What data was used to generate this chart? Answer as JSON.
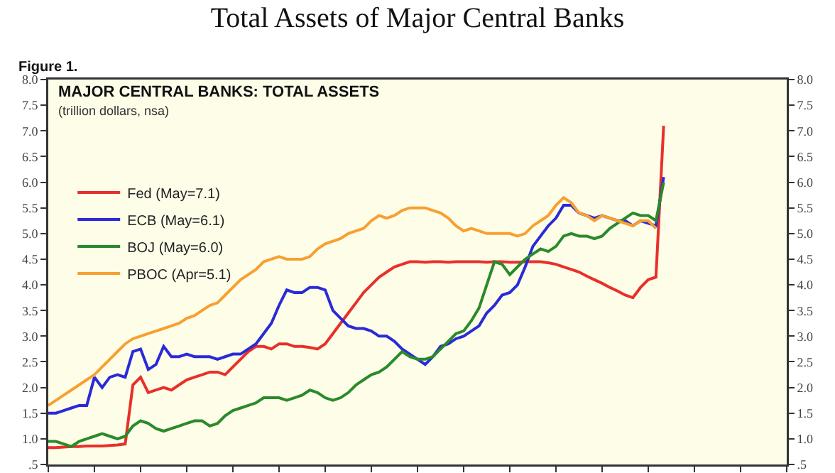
{
  "chart_data": {
    "type": "line",
    "title": "Total Assets of Major Central Banks",
    "subtitle": "MAJOR CENTRAL BANKS: TOTAL ASSETS",
    "annotations": [
      "Figure 1.",
      "(trillion dollars, nsa)"
    ],
    "categories": [
      null,
      null,
      null,
      null,
      null,
      null,
      null,
      null,
      null,
      null,
      null,
      null,
      null,
      null,
      null,
      null,
      null,
      null,
      null,
      null,
      null,
      null,
      null,
      null,
      null,
      null,
      null,
      null,
      null,
      null,
      null,
      null,
      null,
      null,
      null,
      null,
      null,
      null,
      null,
      null,
      null,
      null,
      null,
      null,
      null,
      null,
      null,
      null,
      null,
      null,
      null,
      null,
      null,
      null,
      null,
      null,
      null,
      null,
      null,
      null,
      null,
      null,
      null,
      null,
      null,
      null,
      null,
      null,
      null,
      null,
      null,
      null,
      null,
      null,
      null,
      null,
      null,
      null,
      null,
      null,
      null,
      null,
      null,
      null,
      null,
      null,
      null,
      null,
      null,
      null,
      null,
      null,
      null,
      null,
      null,
      null,
      null
    ],
    "series": [
      {
        "name": "Fed (May=7.1)",
        "color": "#e8302a",
        "values": [
          0.83,
          0.83,
          0.84,
          0.85,
          0.85,
          0.86,
          0.86,
          0.86,
          0.87,
          0.88,
          0.9,
          2.05,
          2.2,
          1.9,
          1.95,
          2.0,
          1.95,
          2.05,
          2.15,
          2.2,
          2.25,
          2.3,
          2.3,
          2.25,
          2.4,
          2.55,
          2.7,
          2.8,
          2.8,
          2.75,
          2.85,
          2.85,
          2.8,
          2.8,
          2.78,
          2.75,
          2.85,
          3.05,
          3.25,
          3.45,
          3.65,
          3.85,
          4.0,
          4.15,
          4.25,
          4.35,
          4.4,
          4.45,
          4.45,
          4.44,
          4.45,
          4.45,
          4.44,
          4.45,
          4.45,
          4.45,
          4.45,
          4.44,
          4.45,
          4.45,
          4.44,
          4.44,
          4.45,
          4.45,
          4.45,
          4.43,
          4.4,
          4.35,
          4.3,
          4.25,
          4.17,
          4.1,
          4.03,
          3.95,
          3.88,
          3.8,
          3.75,
          3.95,
          4.1,
          4.15,
          7.1,
          null,
          null,
          null,
          null,
          null,
          null,
          null,
          null,
          null,
          null,
          null,
          null,
          null,
          null,
          null,
          null
        ]
      },
      {
        "name": "ECB (May=6.1)",
        "color": "#2a2ad8",
        "values": [
          1.5,
          1.5,
          1.55,
          1.6,
          1.65,
          1.65,
          2.2,
          2.0,
          2.2,
          2.25,
          2.2,
          2.7,
          2.75,
          2.35,
          2.45,
          2.8,
          2.6,
          2.6,
          2.65,
          2.6,
          2.6,
          2.6,
          2.55,
          2.6,
          2.65,
          2.65,
          2.75,
          2.85,
          3.05,
          3.25,
          3.6,
          3.9,
          3.85,
          3.85,
          3.95,
          3.95,
          3.9,
          3.5,
          3.35,
          3.2,
          3.15,
          3.15,
          3.1,
          3.0,
          3.0,
          2.9,
          2.75,
          2.65,
          2.55,
          2.45,
          2.6,
          2.8,
          2.85,
          2.95,
          3.0,
          3.1,
          3.2,
          3.45,
          3.6,
          3.8,
          3.85,
          4.0,
          4.35,
          4.75,
          4.95,
          5.15,
          5.3,
          5.55,
          5.55,
          5.4,
          5.35,
          5.3,
          5.35,
          5.3,
          5.25,
          5.25,
          5.15,
          5.25,
          5.2,
          5.15,
          6.1,
          null,
          null,
          null,
          null,
          null,
          null,
          null,
          null,
          null,
          null,
          null,
          null,
          null,
          null,
          null,
          null
        ]
      },
      {
        "name": "BOJ (May=6.0)",
        "color": "#2a8a2a",
        "values": [
          0.95,
          0.95,
          0.9,
          0.85,
          0.95,
          1.0,
          1.05,
          1.1,
          1.05,
          1.0,
          1.05,
          1.25,
          1.35,
          1.3,
          1.2,
          1.15,
          1.2,
          1.25,
          1.3,
          1.35,
          1.35,
          1.25,
          1.3,
          1.45,
          1.55,
          1.6,
          1.65,
          1.7,
          1.8,
          1.8,
          1.8,
          1.75,
          1.8,
          1.85,
          1.95,
          1.9,
          1.8,
          1.75,
          1.8,
          1.9,
          2.05,
          2.15,
          2.25,
          2.3,
          2.4,
          2.55,
          2.7,
          2.6,
          2.55,
          2.55,
          2.6,
          2.75,
          2.9,
          3.05,
          3.1,
          3.3,
          3.55,
          4.0,
          4.45,
          4.4,
          4.2,
          4.35,
          4.5,
          4.6,
          4.7,
          4.65,
          4.75,
          4.95,
          5.0,
          4.95,
          4.95,
          4.9,
          4.95,
          5.1,
          5.2,
          5.3,
          5.4,
          5.35,
          5.35,
          5.25,
          6.0,
          null,
          null,
          null,
          null,
          null,
          null,
          null,
          null,
          null,
          null,
          null,
          null,
          null,
          null,
          null,
          null
        ]
      },
      {
        "name": "PBOC (Apr=5.1)",
        "color": "#f7a032",
        "values": [
          1.65,
          1.75,
          1.85,
          1.95,
          2.05,
          2.15,
          2.25,
          2.4,
          2.55,
          2.7,
          2.85,
          2.95,
          3.0,
          3.05,
          3.1,
          3.15,
          3.2,
          3.25,
          3.35,
          3.4,
          3.5,
          3.6,
          3.65,
          3.8,
          3.95,
          4.1,
          4.2,
          4.3,
          4.45,
          4.5,
          4.55,
          4.5,
          4.5,
          4.5,
          4.55,
          4.7,
          4.8,
          4.85,
          4.9,
          5.0,
          5.05,
          5.1,
          5.25,
          5.35,
          5.3,
          5.35,
          5.45,
          5.5,
          5.5,
          5.5,
          5.45,
          5.4,
          5.3,
          5.15,
          5.05,
          5.1,
          5.05,
          5.0,
          5.0,
          5.0,
          5.0,
          4.95,
          5.0,
          5.15,
          5.25,
          5.35,
          5.55,
          5.7,
          5.6,
          5.4,
          5.35,
          5.25,
          5.35,
          5.3,
          5.25,
          5.2,
          5.15,
          5.25,
          5.25,
          5.1,
          null,
          null,
          null,
          null,
          null,
          null,
          null,
          null,
          null,
          null,
          null,
          null,
          null,
          null,
          null,
          null,
          null
        ]
      }
    ],
    "ylim": [
      0.5,
      8.0
    ],
    "yticks": [
      {
        "value": 0.5,
        "label": ".5"
      },
      {
        "value": 1,
        "label": "1.0"
      },
      1.5,
      {
        "value": 2,
        "label": "2.0"
      },
      2.5,
      {
        "value": 3,
        "label": "3.0"
      },
      3.5,
      {
        "value": 4,
        "label": "4.0"
      },
      4.5,
      {
        "value": 5,
        "label": "5.0"
      },
      5.5,
      {
        "value": 6,
        "label": "6.0"
      },
      6.5,
      {
        "value": 7,
        "label": "7.0"
      },
      7.5,
      {
        "value": 8,
        "label": "8.0"
      }
    ],
    "y2lim": [
      0.5,
      8.0
    ],
    "y2ticks": [
      {
        "value": 0.5,
        "label": ".5"
      },
      {
        "value": 1,
        "label": "1.0"
      },
      1.5,
      {
        "value": 2,
        "label": "2.0"
      },
      2.5,
      {
        "value": 3,
        "label": "3.0"
      },
      3.5,
      {
        "value": 4,
        "label": "4.0"
      },
      4.5,
      {
        "value": 5,
        "label": "5.0"
      },
      5.5,
      {
        "value": 6,
        "label": "6.0"
      },
      6.5,
      {
        "value": 7,
        "label": "7.0"
      },
      7.5,
      {
        "value": 8,
        "label": "8.0"
      }
    ],
    "tick_labels": "y",
    "grid": false,
    "legend": "top left",
    "marker": "none",
    "line_style": "solid"
  }
}
